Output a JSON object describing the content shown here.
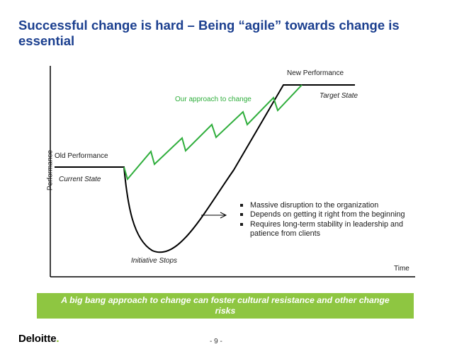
{
  "title": "Successful change is hard – Being “agile” towards change is essential",
  "diagram": {
    "y_axis_label": "Performance",
    "x_axis_label": "Time",
    "labels": {
      "new_performance": "New Performance",
      "target_state": "Target State",
      "our_approach": "Our approach to change",
      "old_performance": "Old Performance",
      "current_state": "Current State",
      "initiative_stops": "Initiative Stops"
    },
    "bullets": [
      "Massive disruption to the organization",
      "Depends on getting it right from the beginning",
      "Requires long-term stability in leadership and patience from clients"
    ],
    "colors": {
      "black_curve": "#000000",
      "green_curve": "#2fae3c",
      "title": "#1b3f8f"
    }
  },
  "banner": "A big bang approach to change can foster cultural resistance and other change risks",
  "footer": {
    "logo_text": "Deloitte",
    "logo_dot": ".",
    "page_number": "- 9 -"
  }
}
